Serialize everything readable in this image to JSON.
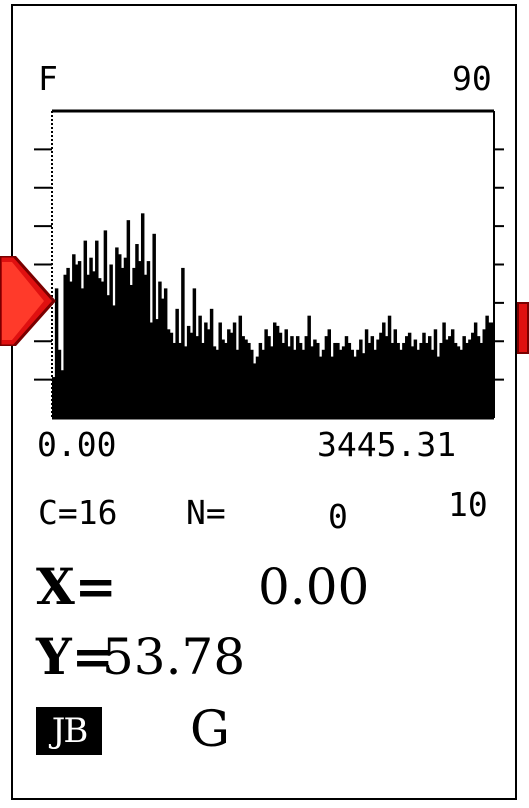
{
  "channel_label": "F",
  "scale_max": "90",
  "x_start": "0.00",
  "x_end": "3445.31",
  "counter": {
    "c_label": "C=16",
    "n_label": "N=",
    "n_value": "0",
    "total": "10"
  },
  "cursor": {
    "x_label": "X=",
    "x_value": "0.00",
    "y_label": "Y=",
    "y_value": "53.78"
  },
  "mode": {
    "jb_label": "JB",
    "g_label": "G"
  },
  "colors": {
    "arrow": "#e01010",
    "plot": "#000000",
    "background": "#ffffff"
  },
  "chart_data": {
    "type": "area",
    "xlim": [
      0.0,
      3445.31
    ],
    "ylim": [
      0,
      90
    ],
    "x_start": 0.0,
    "x_end": 3445.31,
    "y": [
      12,
      38,
      20,
      14,
      42,
      44,
      40,
      48,
      45,
      46,
      38,
      52,
      42,
      47,
      43,
      52,
      41,
      40,
      55,
      36,
      45,
      33,
      50,
      48,
      44,
      47,
      58,
      39,
      44,
      51,
      46,
      60,
      42,
      46,
      28,
      54,
      29,
      40,
      35,
      38,
      26,
      25,
      22,
      32,
      22,
      44,
      21,
      27,
      25,
      38,
      24,
      30,
      22,
      28,
      26,
      32,
      21,
      20,
      28,
      23,
      22,
      26,
      25,
      28,
      20,
      30,
      24,
      23,
      22,
      20,
      16,
      18,
      22,
      20,
      26,
      24,
      21,
      28,
      27,
      25,
      22,
      26,
      21,
      24,
      20,
      24,
      22,
      20,
      24,
      30,
      21,
      23,
      22,
      18,
      20,
      24,
      26,
      18,
      22,
      22,
      20,
      21,
      24,
      22,
      20,
      18,
      20,
      23,
      19,
      26,
      22,
      24,
      20,
      23,
      25,
      28,
      24,
      30,
      22,
      26,
      22,
      20,
      22,
      24,
      25,
      21,
      23,
      20,
      22,
      25,
      22,
      24,
      20,
      26,
      18,
      22,
      28,
      23,
      24,
      26,
      22,
      21,
      20,
      24,
      22,
      23,
      25,
      28,
      24,
      22,
      26,
      30,
      28,
      28
    ]
  }
}
